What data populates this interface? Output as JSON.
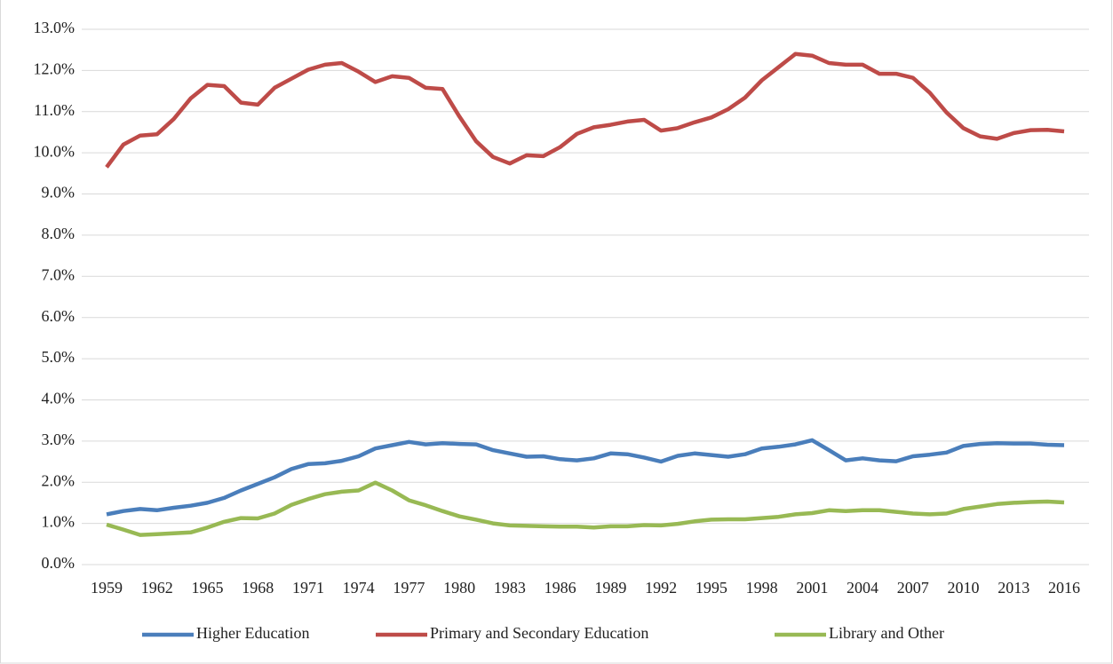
{
  "chart_data": {
    "type": "line",
    "categories": [
      "1959",
      null,
      null,
      "1962",
      null,
      null,
      "1965",
      null,
      null,
      "1968",
      null,
      null,
      "1971",
      null,
      null,
      "1974",
      null,
      null,
      "1977",
      null,
      null,
      "1980",
      null,
      null,
      "1983",
      null,
      null,
      "1986",
      null,
      null,
      "1989",
      null,
      null,
      "1992",
      null,
      null,
      "1995",
      null,
      null,
      "1998",
      null,
      null,
      "2001",
      null,
      null,
      "2004",
      null,
      null,
      "2007",
      null,
      null,
      "2010",
      null,
      null,
      "2013",
      null,
      null,
      "2016"
    ],
    "series": [
      {
        "name": "Higher Education",
        "color": "#4a7ebb",
        "values": [
          1.22,
          1.3,
          1.35,
          1.32,
          1.38,
          1.43,
          1.5,
          1.62,
          1.8,
          1.96,
          2.12,
          2.32,
          2.44,
          2.46,
          2.52,
          2.63,
          2.82,
          2.9,
          2.98,
          2.92,
          2.95,
          2.93,
          2.92,
          2.78,
          2.7,
          2.62,
          2.63,
          2.56,
          2.53,
          2.58,
          2.7,
          2.68,
          2.6,
          2.5,
          2.64,
          2.7,
          2.66,
          2.62,
          2.68,
          2.82,
          2.86,
          2.92,
          3.02,
          2.78,
          2.53,
          2.58,
          2.53,
          2.51,
          2.63,
          2.67,
          2.72,
          2.88,
          2.93,
          2.95,
          2.94,
          2.94,
          2.91,
          2.9
        ]
      },
      {
        "name": "Primary and Secondary Education",
        "color": "#be4b48",
        "values": [
          9.65,
          10.2,
          10.42,
          10.45,
          10.82,
          11.32,
          11.65,
          11.62,
          11.22,
          11.17,
          11.58,
          11.8,
          12.02,
          12.14,
          12.18,
          11.97,
          11.72,
          11.86,
          11.82,
          11.58,
          11.55,
          10.88,
          10.28,
          9.9,
          9.74,
          9.94,
          9.92,
          10.14,
          10.46,
          10.62,
          10.68,
          10.76,
          10.8,
          10.54,
          10.6,
          10.74,
          10.86,
          11.06,
          11.34,
          11.76,
          12.08,
          12.4,
          12.36,
          12.18,
          12.14,
          12.14,
          11.92,
          11.92,
          11.82,
          11.46,
          10.98,
          10.6,
          10.4,
          10.34,
          10.48,
          10.55,
          10.56,
          10.52
        ]
      },
      {
        "name": "Library and Other",
        "color": "#98b954",
        "values": [
          0.97,
          0.85,
          0.72,
          0.74,
          0.76,
          0.78,
          0.9,
          1.04,
          1.13,
          1.12,
          1.24,
          1.45,
          1.59,
          1.71,
          1.77,
          1.8,
          1.99,
          1.8,
          1.56,
          1.44,
          1.3,
          1.17,
          1.09,
          1.0,
          0.95,
          0.94,
          0.93,
          0.92,
          0.92,
          0.9,
          0.93,
          0.93,
          0.96,
          0.95,
          0.99,
          1.05,
          1.09,
          1.1,
          1.1,
          1.13,
          1.16,
          1.22,
          1.25,
          1.32,
          1.3,
          1.32,
          1.32,
          1.28,
          1.24,
          1.22,
          1.24,
          1.35,
          1.41,
          1.47,
          1.5,
          1.52,
          1.53,
          1.51
        ]
      }
    ],
    "ylim": [
      0,
      13
    ],
    "yticks": [
      {
        "value": 0,
        "label": "0.0%"
      },
      {
        "value": 1,
        "label": "1.0%"
      },
      {
        "value": 2,
        "label": "2.0%"
      },
      {
        "value": 3,
        "label": "3.0%"
      },
      {
        "value": 4,
        "label": "4.0%"
      },
      {
        "value": 5,
        "label": "5.0%"
      },
      {
        "value": 6,
        "label": "6.0%"
      },
      {
        "value": 7,
        "label": "7.0%"
      },
      {
        "value": 8,
        "label": "8.0%"
      },
      {
        "value": 9,
        "label": "9.0%"
      },
      {
        "value": 10,
        "label": "10.0%"
      },
      {
        "value": 11,
        "label": "11.0%"
      },
      {
        "value": 12,
        "label": "12.0%"
      },
      {
        "value": 13,
        "label": "13.0%"
      }
    ],
    "grid": true,
    "legend": "bottom"
  }
}
